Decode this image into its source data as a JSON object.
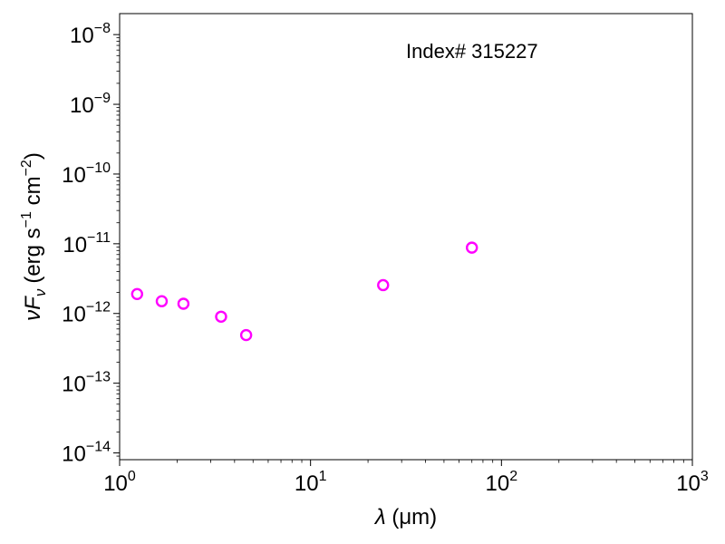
{
  "chart_data": {
    "type": "scatter",
    "annotation": "Index# 315227",
    "xlabel": {
      "symbol": "λ",
      "unit": "(μm)"
    },
    "ylabel": {
      "base": "νF",
      "sub": "ν",
      "unit_open": "(erg s",
      "exp1": "−1",
      "mid": " cm",
      "exp2": "−2",
      "unit_close": ")"
    },
    "x_scale": "log",
    "y_scale": "log",
    "xlim": [
      1,
      1000
    ],
    "ylim": [
      8e-15,
      2e-08
    ],
    "x_ticks": [
      {
        "value": 1,
        "exp": "0"
      },
      {
        "value": 10,
        "exp": "1"
      },
      {
        "value": 100,
        "exp": "2"
      },
      {
        "value": 1000,
        "exp": "3"
      }
    ],
    "y_ticks": [
      {
        "value": 1e-14,
        "exp": "−14"
      },
      {
        "value": 1e-13,
        "exp": "−13"
      },
      {
        "value": 1e-12,
        "exp": "−12"
      },
      {
        "value": 1e-11,
        "exp": "−11"
      },
      {
        "value": 1e-10,
        "exp": "−10"
      },
      {
        "value": 1e-09,
        "exp": "−9"
      },
      {
        "value": 1e-08,
        "exp": "−8"
      }
    ],
    "tick_base": "10",
    "marker": {
      "shape": "open-circle",
      "color": "#ff00ff"
    },
    "grid": false,
    "points": [
      {
        "x": 1.235,
        "y": 1.9e-12
      },
      {
        "x": 1.662,
        "y": 1.5e-12
      },
      {
        "x": 2.159,
        "y": 1.38e-12
      },
      {
        "x": 3.4,
        "y": 9e-13
      },
      {
        "x": 4.6,
        "y": 4.9e-13
      },
      {
        "x": 24.0,
        "y": 2.55e-12
      },
      {
        "x": 70.0,
        "y": 8.8e-12
      }
    ]
  }
}
